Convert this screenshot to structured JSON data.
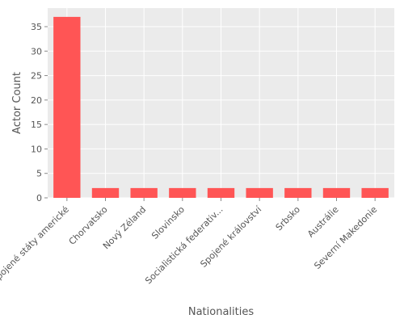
{
  "chart_data": {
    "type": "bar",
    "categories": [
      "Spojené státy americké",
      "Chorvatsko",
      "Nový Zéland",
      "Slovinsko",
      "Socialistická federativ...",
      "Spojené království",
      "Srbsko",
      "Austrálie",
      "Severní Makedonie"
    ],
    "values": [
      37,
      2,
      2,
      2,
      2,
      2,
      2,
      2,
      2
    ],
    "xlabel": "Nationalities",
    "ylabel": "Actor Count",
    "ylim": [
      0,
      38.8
    ],
    "yticks": [
      0,
      5,
      10,
      15,
      20,
      25,
      30,
      35
    ],
    "grid": true,
    "legend": "none",
    "colors": {
      "bar": "#ff5555",
      "panel": "#ebebeb",
      "grid": "#ffffff",
      "text": "#555555"
    }
  }
}
